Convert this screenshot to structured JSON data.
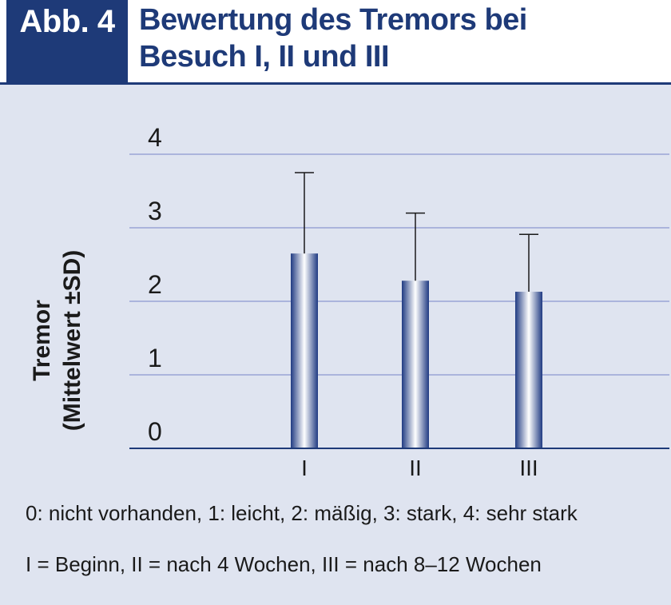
{
  "header": {
    "badge": "Abb. 4",
    "title_line1": "Bewertung des Tremors bei",
    "title_line2": "Besuch I, II und III"
  },
  "colors": {
    "header_navy": "#1e3a78",
    "panel_bg": "#dfe4f0",
    "grid": "#9aa3d6",
    "bar_dark": "#1f3a82",
    "bar_light": "#ffffff"
  },
  "chart_data": {
    "type": "bar",
    "categories": [
      "I",
      "II",
      "III"
    ],
    "values": [
      2.65,
      2.28,
      2.13
    ],
    "error_sd": [
      1.1,
      0.92,
      0.78
    ],
    "ylabel_line1": "Tremor",
    "ylabel_line2": "(Mittelwert ±SD)",
    "ylim": [
      0,
      4
    ],
    "yticks": [
      "0",
      "1",
      "2",
      "3",
      "4"
    ],
    "grid": true,
    "error_bars": "upper only"
  },
  "captions": {
    "scale": "0: nicht vorhanden, 1: leicht, 2: mäßig, 3: stark, 4: sehr stark",
    "visits": "I = Beginn, II = nach 4 Wochen, III = nach 8–12 Wochen"
  }
}
